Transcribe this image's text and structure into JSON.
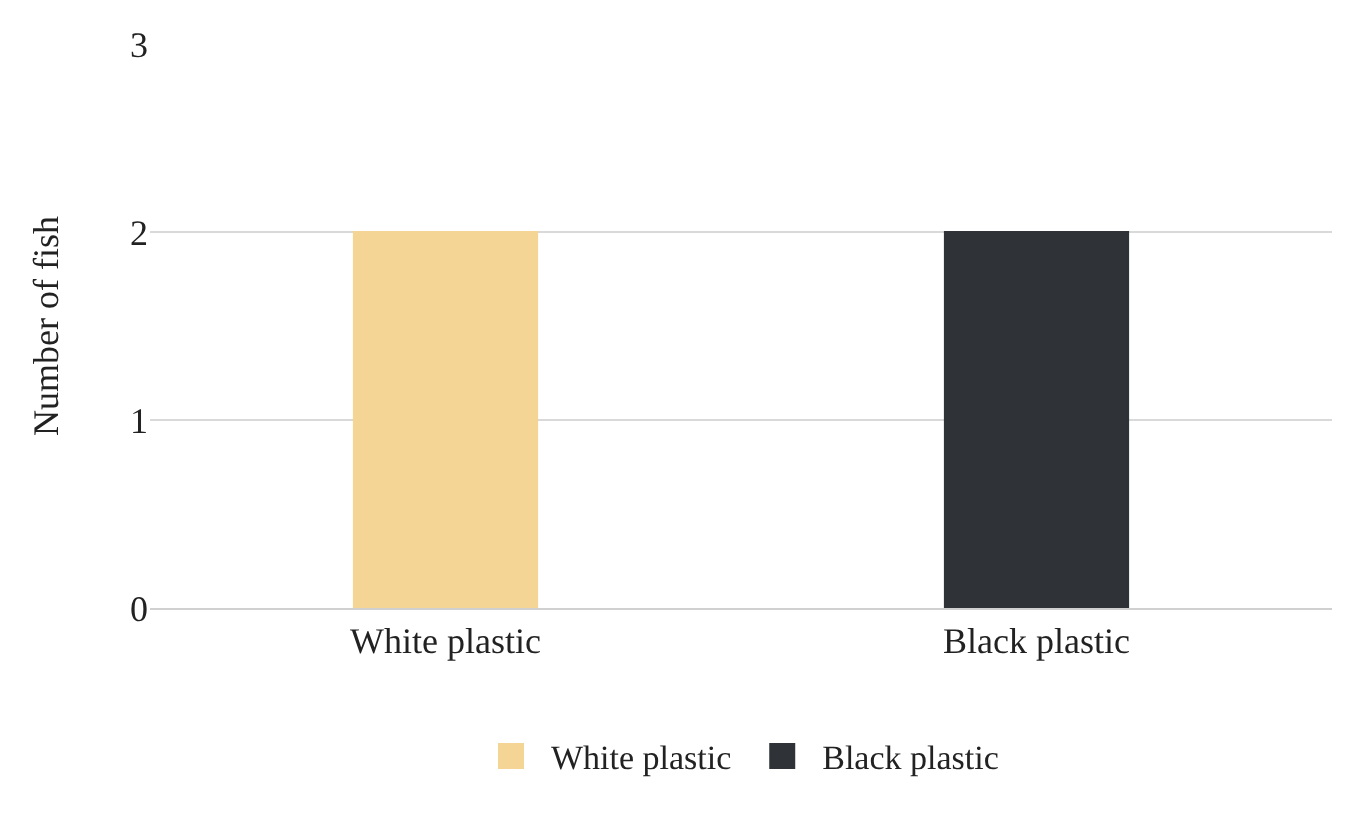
{
  "chart_data": {
    "type": "bar",
    "ylabel": "Number of fish",
    "categories": [
      "White plastic",
      "Black plastic"
    ],
    "series": [
      {
        "name": "White plastic",
        "color": "#f5d596",
        "values": [
          2,
          null
        ]
      },
      {
        "name": "Black plastic",
        "color": "#2f3338",
        "values": [
          null,
          2
        ]
      }
    ],
    "ylim": [
      0,
      3
    ],
    "yticks": [
      0,
      1,
      2,
      3
    ],
    "grid": "y",
    "legend": "bottom"
  }
}
